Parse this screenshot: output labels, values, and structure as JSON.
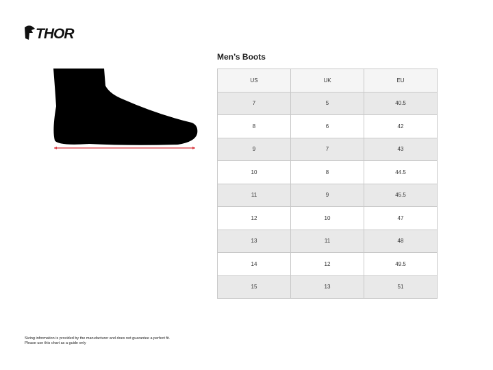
{
  "brand": "THOR",
  "title": "Men’s Boots",
  "table": {
    "headers": [
      "US",
      "UK",
      "EU"
    ],
    "rows": [
      [
        "7",
        "5",
        "40.5"
      ],
      [
        "8",
        "6",
        "42"
      ],
      [
        "9",
        "7",
        "43"
      ],
      [
        "10",
        "8",
        "44.5"
      ],
      [
        "11",
        "9",
        "45.5"
      ],
      [
        "12",
        "10",
        "47"
      ],
      [
        "13",
        "11",
        "48"
      ],
      [
        "14",
        "12",
        "49.5"
      ],
      [
        "15",
        "13",
        "51"
      ]
    ]
  },
  "note": {
    "line1": "Sizing information is provided by the manufacturer and does not guarantee a perfect fit.",
    "line2": "Please use this chart as a guide only"
  },
  "colors": {
    "measure_line": "#d9363e",
    "silhouette": "#000000"
  }
}
